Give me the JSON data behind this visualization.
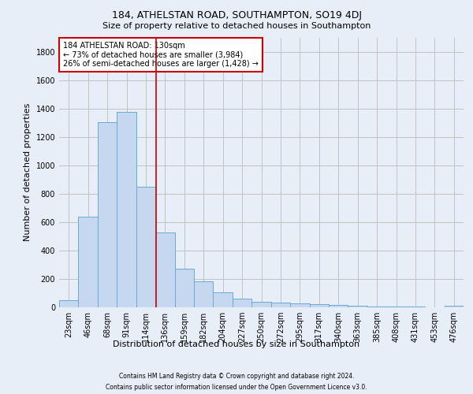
{
  "title_line1": "184, ATHELSTAN ROAD, SOUTHAMPTON, SO19 4DJ",
  "title_line2": "Size of property relative to detached houses in Southampton",
  "xlabel": "Distribution of detached houses by size in Southampton",
  "ylabel": "Number of detached properties",
  "footer_line1": "Contains HM Land Registry data © Crown copyright and database right 2024.",
  "footer_line2": "Contains public sector information licensed under the Open Government Licence v3.0.",
  "categories": [
    "23sqm",
    "46sqm",
    "68sqm",
    "91sqm",
    "114sqm",
    "136sqm",
    "159sqm",
    "182sqm",
    "204sqm",
    "227sqm",
    "250sqm",
    "272sqm",
    "295sqm",
    "317sqm",
    "340sqm",
    "363sqm",
    "385sqm",
    "408sqm",
    "431sqm",
    "453sqm",
    "476sqm"
  ],
  "values": [
    50,
    637,
    1305,
    1375,
    848,
    527,
    272,
    182,
    103,
    63,
    38,
    35,
    28,
    20,
    15,
    13,
    8,
    5,
    5,
    2,
    12
  ],
  "bar_color": "#c5d8f0",
  "bar_edge_color": "#6aaad4",
  "grid_color": "#bbbbbb",
  "annotation_text": "184 ATHELSTAN ROAD: 130sqm\n← 73% of detached houses are smaller (3,984)\n26% of semi-detached houses are larger (1,428) →",
  "annotation_box_color": "#ffffff",
  "annotation_box_edge_color": "#cc0000",
  "vline_color": "#cc0000",
  "vline_x": 4.55,
  "ylim": [
    0,
    1900
  ],
  "yticks": [
    0,
    200,
    400,
    600,
    800,
    1000,
    1200,
    1400,
    1600,
    1800
  ],
  "bg_color": "#e8eef8",
  "plot_bg_color": "#e8eef8",
  "title1_fontsize": 9,
  "title2_fontsize": 8,
  "ylabel_fontsize": 8,
  "xlabel_fontsize": 8,
  "tick_fontsize": 7,
  "footer_fontsize": 5.5,
  "annot_fontsize": 7
}
